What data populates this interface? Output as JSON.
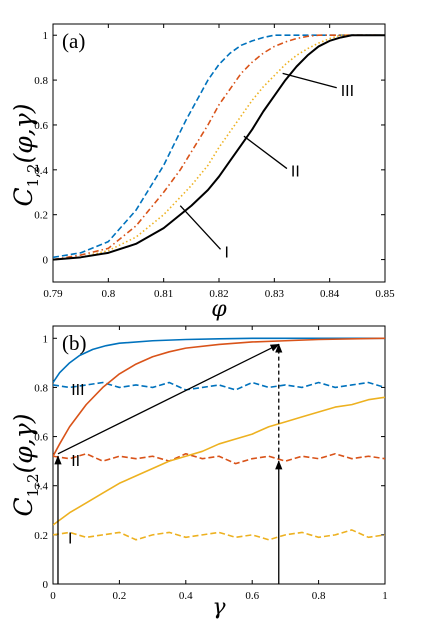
{
  "figure": {
    "ylabel": "C1,2(φ,γ)",
    "ylabel_main": "C",
    "ylabel_sub": "1,2",
    "ylabel_args": "(φ,γ)"
  },
  "chart_data": [
    {
      "panel": "(a)",
      "type": "line",
      "xlabel": "φ",
      "ylabel": "C1,2(φ,γ)",
      "xlim": [
        0.79,
        0.85
      ],
      "ylim": [
        -0.1,
        1.05
      ],
      "xticks": [
        "0.79",
        "0.8",
        "0.81",
        "0.82",
        "0.83",
        "0.84",
        "0.85"
      ],
      "yticks": [
        "0",
        "0.2",
        "0.4",
        "0.6",
        "0.8",
        "1"
      ],
      "grid": false,
      "series": [
        {
          "color": "#0072BD",
          "style": "dashed",
          "x": [
            0.79,
            0.795,
            0.8,
            0.805,
            0.81,
            0.812,
            0.814,
            0.816,
            0.818,
            0.82,
            0.822,
            0.824,
            0.826,
            0.828,
            0.83,
            0.832,
            0.834,
            0.84,
            0.85
          ],
          "y": [
            0.01,
            0.03,
            0.08,
            0.22,
            0.42,
            0.52,
            0.62,
            0.71,
            0.8,
            0.87,
            0.92,
            0.955,
            0.975,
            0.99,
            1.0,
            1.0,
            1.0,
            1.0,
            1.0
          ]
        },
        {
          "color": "#D95319",
          "style": "dashdot",
          "x": [
            0.79,
            0.795,
            0.8,
            0.805,
            0.81,
            0.813,
            0.816,
            0.818,
            0.82,
            0.822,
            0.824,
            0.826,
            0.828,
            0.83,
            0.832,
            0.834,
            0.836,
            0.838,
            0.84,
            0.85
          ],
          "y": [
            0.0,
            0.02,
            0.05,
            0.15,
            0.3,
            0.4,
            0.52,
            0.6,
            0.69,
            0.76,
            0.83,
            0.88,
            0.92,
            0.95,
            0.97,
            0.985,
            0.995,
            1.0,
            1.0,
            1.0
          ]
        },
        {
          "color": "#EDB120",
          "style": "dotted",
          "x": [
            0.79,
            0.795,
            0.8,
            0.805,
            0.81,
            0.815,
            0.818,
            0.82,
            0.822,
            0.824,
            0.826,
            0.828,
            0.83,
            0.832,
            0.834,
            0.836,
            0.838,
            0.84,
            0.842,
            0.844,
            0.85
          ],
          "y": [
            0.0,
            0.01,
            0.04,
            0.1,
            0.2,
            0.33,
            0.42,
            0.5,
            0.57,
            0.64,
            0.71,
            0.77,
            0.82,
            0.87,
            0.91,
            0.94,
            0.965,
            0.985,
            1.0,
            1.0,
            1.0
          ]
        },
        {
          "color": "#000000",
          "style": "solid",
          "x": [
            0.79,
            0.795,
            0.8,
            0.805,
            0.81,
            0.815,
            0.818,
            0.82,
            0.822,
            0.824,
            0.826,
            0.828,
            0.83,
            0.832,
            0.834,
            0.836,
            0.838,
            0.84,
            0.842,
            0.844,
            0.846,
            0.85
          ],
          "y": [
            0.0,
            0.01,
            0.03,
            0.07,
            0.14,
            0.24,
            0.31,
            0.37,
            0.44,
            0.51,
            0.58,
            0.66,
            0.73,
            0.8,
            0.86,
            0.91,
            0.95,
            0.975,
            0.99,
            1.0,
            1.0,
            1.0
          ]
        }
      ],
      "annotations": [
        {
          "text": "I",
          "target_x": 0.813,
          "target_y": 0.24,
          "label_x": 0.821,
          "label_y": 0.01
        },
        {
          "text": "II",
          "target_x": 0.8245,
          "target_y": 0.55,
          "label_x": 0.833,
          "label_y": 0.37
        },
        {
          "text": "III",
          "target_x": 0.8315,
          "target_y": 0.83,
          "label_x": 0.842,
          "label_y": 0.73
        }
      ]
    },
    {
      "panel": "(b)",
      "type": "line",
      "xlabel": "γ",
      "ylabel": "C1,2(φ,γ)",
      "xlim": [
        0,
        1
      ],
      "ylim": [
        0,
        1.05
      ],
      "xticks": [
        "0",
        "0.2",
        "0.4",
        "0.6",
        "0.8",
        "1"
      ],
      "yticks": [
        "0",
        "0.2",
        "0.4",
        "0.6",
        "0.8",
        "1"
      ],
      "grid": false,
      "series": [
        {
          "color": "#0072BD",
          "style": "solid",
          "x": [
            0,
            0.02,
            0.05,
            0.08,
            0.12,
            0.16,
            0.2,
            0.3,
            0.4,
            0.5,
            0.6,
            0.8,
            1.0
          ],
          "y": [
            0.82,
            0.86,
            0.9,
            0.93,
            0.955,
            0.97,
            0.98,
            0.99,
            0.995,
            0.998,
            1.0,
            1.0,
            1.0
          ]
        },
        {
          "color": "#0072BD",
          "style": "dashed",
          "x": [
            0,
            0.05,
            0.1,
            0.15,
            0.2,
            0.25,
            0.3,
            0.35,
            0.4,
            0.45,
            0.5,
            0.55,
            0.6,
            0.65,
            0.7,
            0.75,
            0.8,
            0.85,
            0.9,
            0.95,
            1.0
          ],
          "y": [
            0.81,
            0.8,
            0.81,
            0.82,
            0.8,
            0.81,
            0.8,
            0.82,
            0.79,
            0.8,
            0.81,
            0.79,
            0.82,
            0.8,
            0.81,
            0.8,
            0.82,
            0.8,
            0.81,
            0.82,
            0.8
          ]
        },
        {
          "color": "#D95319",
          "style": "solid",
          "x": [
            0,
            0.02,
            0.05,
            0.1,
            0.15,
            0.2,
            0.25,
            0.3,
            0.35,
            0.4,
            0.5,
            0.6,
            0.7,
            0.8,
            1.0
          ],
          "y": [
            0.52,
            0.57,
            0.64,
            0.73,
            0.8,
            0.855,
            0.895,
            0.925,
            0.945,
            0.96,
            0.975,
            0.985,
            0.99,
            0.995,
            1.0
          ]
        },
        {
          "color": "#D95319",
          "style": "dashed",
          "x": [
            0,
            0.05,
            0.1,
            0.15,
            0.2,
            0.25,
            0.3,
            0.35,
            0.4,
            0.45,
            0.5,
            0.55,
            0.6,
            0.65,
            0.7,
            0.75,
            0.8,
            0.85,
            0.9,
            0.95,
            1.0
          ],
          "y": [
            0.52,
            0.51,
            0.53,
            0.5,
            0.52,
            0.51,
            0.52,
            0.5,
            0.53,
            0.51,
            0.52,
            0.49,
            0.51,
            0.52,
            0.5,
            0.52,
            0.51,
            0.53,
            0.51,
            0.52,
            0.51
          ]
        },
        {
          "color": "#EDB120",
          "style": "solid",
          "x": [
            0,
            0.05,
            0.1,
            0.15,
            0.2,
            0.25,
            0.3,
            0.35,
            0.4,
            0.45,
            0.5,
            0.55,
            0.6,
            0.65,
            0.7,
            0.75,
            0.8,
            0.85,
            0.9,
            0.95,
            1.0
          ],
          "y": [
            0.24,
            0.29,
            0.33,
            0.37,
            0.41,
            0.44,
            0.47,
            0.5,
            0.52,
            0.54,
            0.57,
            0.59,
            0.61,
            0.64,
            0.66,
            0.68,
            0.7,
            0.72,
            0.73,
            0.75,
            0.76
          ]
        },
        {
          "color": "#EDB120",
          "style": "dashed",
          "x": [
            0,
            0.05,
            0.1,
            0.15,
            0.2,
            0.25,
            0.3,
            0.35,
            0.4,
            0.45,
            0.5,
            0.55,
            0.6,
            0.65,
            0.7,
            0.75,
            0.8,
            0.85,
            0.9,
            0.95,
            1.0
          ],
          "y": [
            0.2,
            0.21,
            0.19,
            0.2,
            0.21,
            0.18,
            0.2,
            0.21,
            0.19,
            0.2,
            0.21,
            0.19,
            0.2,
            0.18,
            0.2,
            0.21,
            0.19,
            0.2,
            0.22,
            0.19,
            0.2
          ]
        }
      ],
      "annotations": [
        {
          "text": "III",
          "label_x": 0.055,
          "label_y": 0.77
        },
        {
          "text": "II",
          "label_x": 0.055,
          "label_y": 0.48
        },
        {
          "text": "I",
          "label_x": 0.045,
          "label_y": 0.165
        }
      ],
      "arrows": [
        {
          "color": "#000000",
          "style": "solid",
          "from": [
            0.015,
            0.0
          ],
          "to": [
            0.015,
            0.52
          ]
        },
        {
          "color": "#000000",
          "style": "solid",
          "from": [
            0.015,
            0.53
          ],
          "to": [
            0.68,
            0.975
          ]
        },
        {
          "color": "#000000",
          "style": "solid",
          "from": [
            0.68,
            0.0
          ],
          "to": [
            0.68,
            0.5
          ]
        },
        {
          "color": "#000000",
          "style": "dashed",
          "from": [
            0.68,
            0.51
          ],
          "to": [
            0.68,
            0.975
          ]
        }
      ]
    }
  ]
}
